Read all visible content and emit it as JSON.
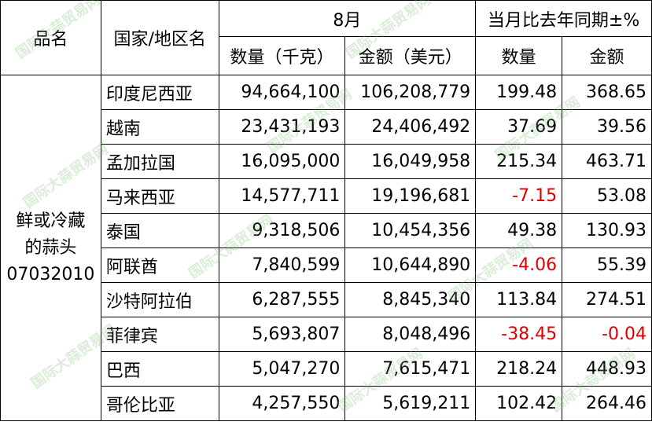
{
  "headers": {
    "product": "品名",
    "country": "国家/地区名",
    "month": "8月",
    "change": "当月比去年同期±%",
    "qty": "数量（千克）",
    "amount": "金额（美元）",
    "qty_pct": "数量",
    "amount_pct": "金额"
  },
  "product": {
    "line1": "鲜或冷藏",
    "line2": "的蒜头",
    "code": "07032010"
  },
  "rows": [
    {
      "country": "印度尼西亚",
      "qty": "94,664,100",
      "amount": "106,208,779",
      "qty_pct": "199.48",
      "amount_pct": "368.65"
    },
    {
      "country": "越南",
      "qty": "23,431,193",
      "amount": "24,406,492",
      "qty_pct": "37.69",
      "amount_pct": "39.56"
    },
    {
      "country": "孟加拉国",
      "qty": "16,095,000",
      "amount": "16,049,958",
      "qty_pct": "215.34",
      "amount_pct": "463.71"
    },
    {
      "country": "马来西亚",
      "qty": "14,577,711",
      "amount": "19,196,681",
      "qty_pct": "-7.15",
      "amount_pct": "53.08"
    },
    {
      "country": "泰国",
      "qty": "9,318,506",
      "amount": "10,454,356",
      "qty_pct": "49.38",
      "amount_pct": "130.93"
    },
    {
      "country": "阿联酋",
      "qty": "7,840,599",
      "amount": "10,644,890",
      "qty_pct": "-4.06",
      "amount_pct": "55.39"
    },
    {
      "country": "沙特阿拉伯",
      "qty": "6,287,555",
      "amount": "8,845,340",
      "qty_pct": "113.84",
      "amount_pct": "274.51"
    },
    {
      "country": "菲律宾",
      "qty": "5,693,807",
      "amount": "8,048,496",
      "qty_pct": "-38.45",
      "amount_pct": "-0.04"
    },
    {
      "country": "巴西",
      "qty": "5,047,270",
      "amount": "7,615,471",
      "qty_pct": "218.24",
      "amount_pct": "448.93"
    },
    {
      "country": "哥伦比亚",
      "qty": "4,257,550",
      "amount": "5,619,211",
      "qty_pct": "102.42",
      "amount_pct": "264.46"
    }
  ],
  "watermark": "国际大蒜贸易网"
}
